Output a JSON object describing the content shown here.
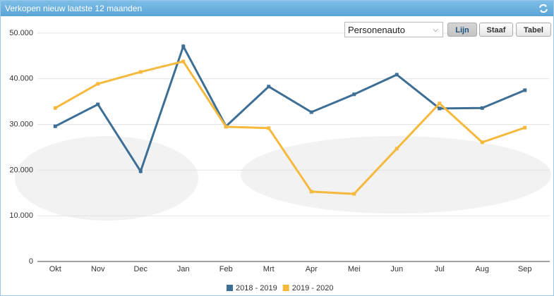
{
  "chart_data": {
    "type": "line",
    "title": "Verkopen nieuw laatste 12 maanden",
    "categories": [
      "Okt",
      "Nov",
      "Dec",
      "Jan",
      "Feb",
      "Mrt",
      "Apr",
      "Mei",
      "Jun",
      "Jul",
      "Aug",
      "Sep"
    ],
    "series": [
      {
        "name": "2018 - 2019",
        "color": "#3d6f96",
        "values": [
          29600,
          34400,
          19750,
          47100,
          29600,
          38300,
          32700,
          36600,
          40900,
          33500,
          33600,
          37500
        ]
      },
      {
        "name": "2019 - 2020",
        "color": "#f5b93d",
        "values": [
          33600,
          38900,
          41500,
          43800,
          29500,
          29200,
          15300,
          14800,
          24700,
          34600,
          26100,
          29300
        ]
      }
    ],
    "ylim": [
      0,
      50000
    ],
    "yticks": [
      0,
      {
        "value": 10000,
        "label": "10.000"
      },
      {
        "value": 20000,
        "label": "20.000"
      },
      {
        "value": 30000,
        "label": "30.000"
      },
      {
        "value": 40000,
        "label": "40.000"
      },
      {
        "value": 50000,
        "label": "50.000"
      }
    ],
    "grid": true,
    "legend": "bottom"
  },
  "controls": {
    "select": "Personenauto",
    "buttons": [
      "Lijn",
      "Staaf",
      "Tabel"
    ],
    "active": 0
  }
}
